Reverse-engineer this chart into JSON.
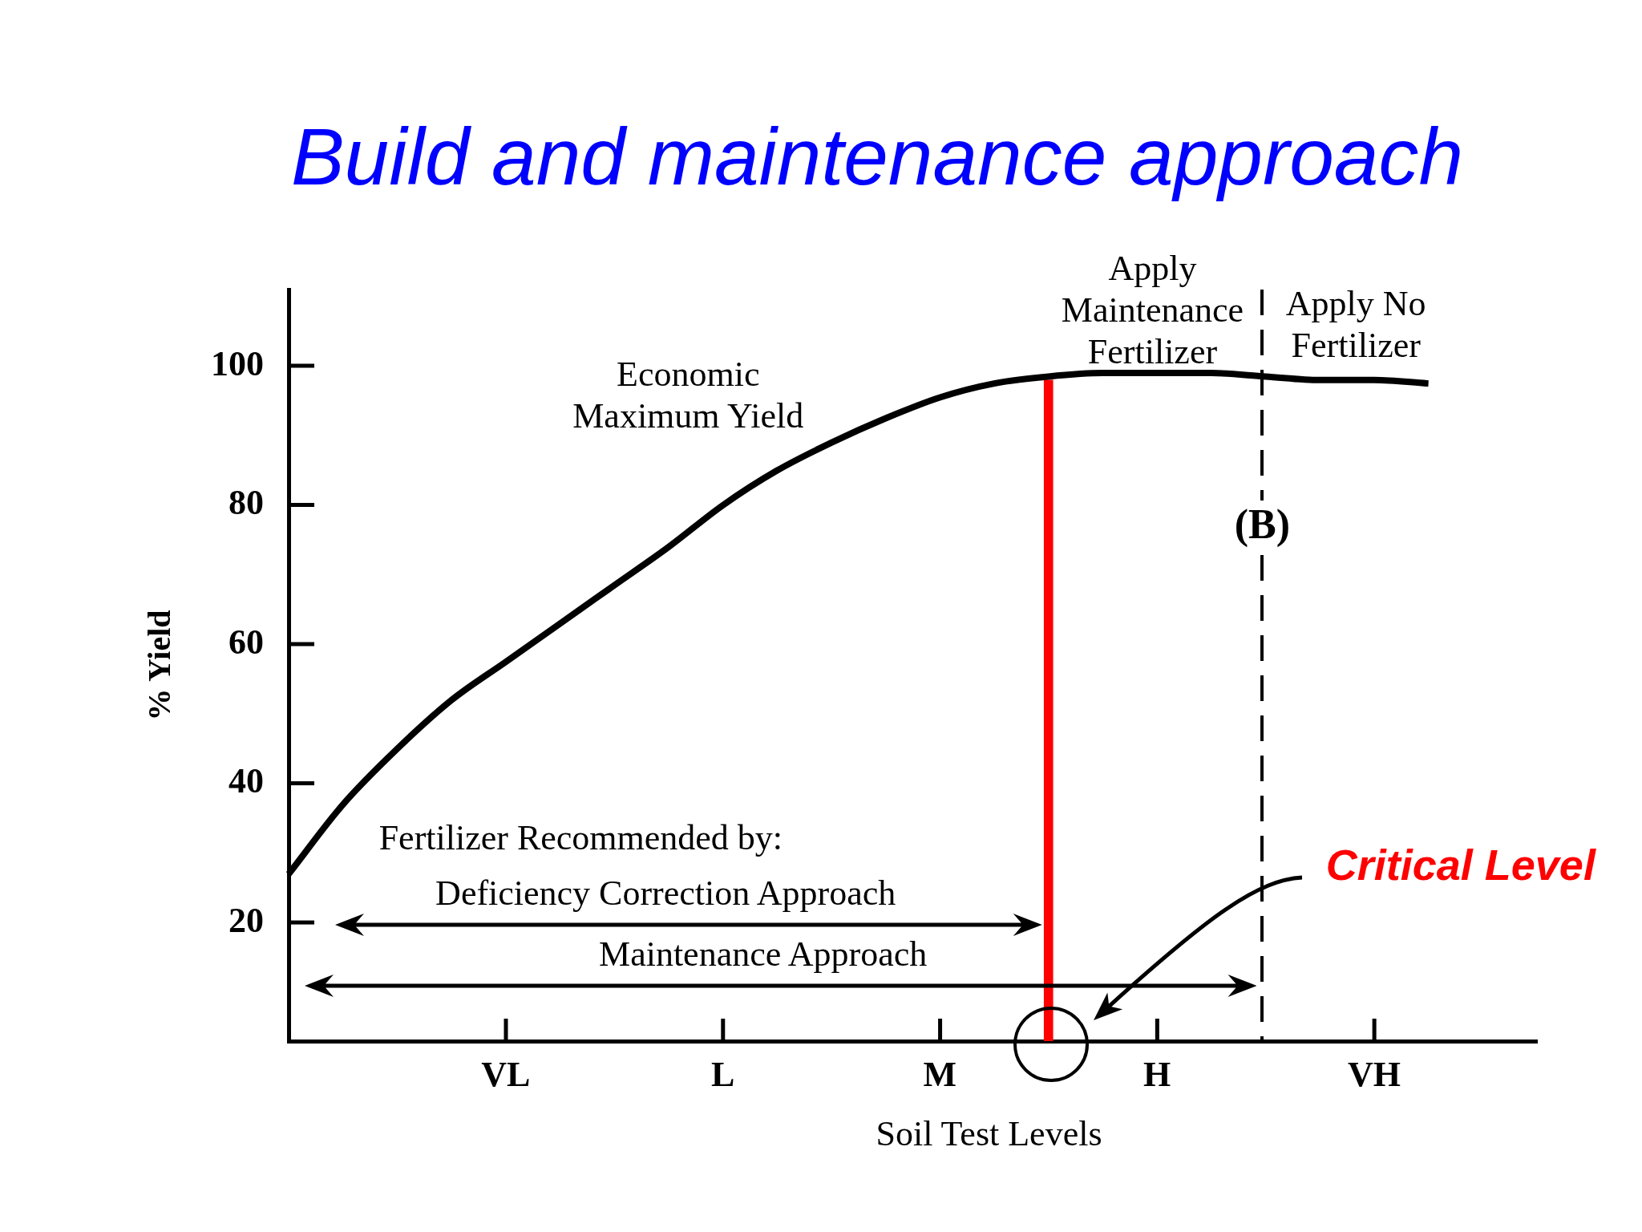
{
  "chart_data": {
    "type": "line",
    "title": "Build and maintenance approach",
    "xlabel": "Soil Test Levels",
    "ylabel": "% Yield",
    "categories": [
      null,
      null,
      null,
      null,
      "VL",
      null,
      null,
      null,
      "L",
      null,
      null,
      null,
      "M",
      null,
      null,
      null,
      "H",
      null,
      null,
      null,
      "VH",
      null,
      null,
      null
    ],
    "ylim": [
      3,
      111
    ],
    "yticks": [
      20,
      40,
      60,
      80,
      100
    ],
    "marker": "none",
    "series": [
      {
        "color": "#000000",
        "values": [
          27,
          37,
          45,
          52,
          57.5,
          63,
          68.5,
          74,
          80,
          85,
          89,
          92.5,
          95.5,
          97.5,
          98.5,
          99,
          99,
          99,
          98.5,
          98,
          98,
          97.5,
          null,
          null
        ]
      },
      {
        "type": "bar",
        "name": "Critical Level",
        "color": "#ff0000",
        "values": [
          null,
          null,
          null,
          null,
          null,
          null,
          null,
          null,
          null,
          null,
          null,
          null,
          null,
          null,
          98,
          null,
          null,
          null,
          null,
          null,
          null,
          null,
          null,
          null
        ]
      }
    ],
    "annotations": [
      "Economic\nMaximum Yield",
      "Apply\nMaintenance\nFertilizer",
      "Apply No\nFertilizer",
      "Fertilizer Recommended by:",
      "Deficiency Correction Approach",
      "Maintenance Approach",
      "(B)"
    ]
  }
}
